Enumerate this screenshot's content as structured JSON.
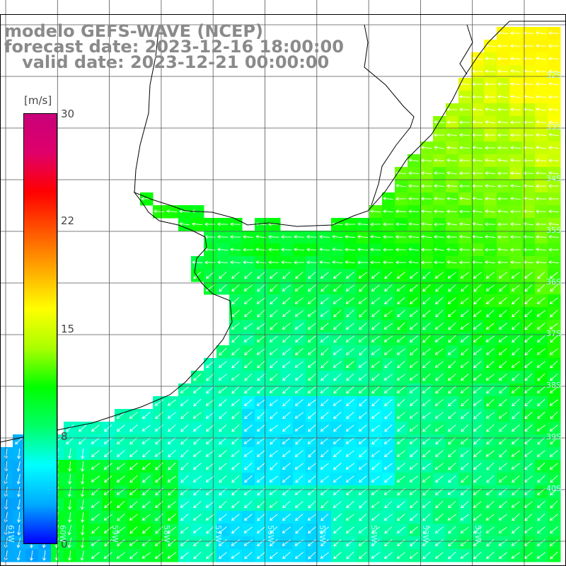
{
  "title": {
    "line1": "modelo GEFS-WAVE (NCEP)",
    "line2": "forecast date: 2023-12-16 18:00:00",
    "line3": "   valid date: 2023-12-21 00:00:00"
  },
  "colorbar": {
    "unit": "[m/s]",
    "ticks": [
      "30",
      "22",
      "15",
      "8",
      "0"
    ],
    "tick_values": [
      30,
      22,
      15,
      8,
      0
    ],
    "colors": [
      "#0000ff",
      "#00aaff",
      "#00ffff",
      "#00ff66",
      "#00ff00",
      "#aaff00",
      "#ffff00",
      "#ffaa00",
      "#ff5500",
      "#ff0000",
      "#e0006a",
      "#c8007a"
    ]
  },
  "grid": {
    "lat_labels": [
      "32S",
      "33S",
      "34S",
      "35S",
      "36S",
      "37S",
      "38S",
      "39S",
      "40S"
    ],
    "lon_labels": [
      "61W",
      "60W",
      "59W",
      "58W",
      "57W",
      "56W",
      "55W",
      "54W",
      "53W",
      "52W"
    ]
  },
  "map": {
    "land_color": "#ffffff",
    "coast_color": "#000000",
    "grid_color": "#555555",
    "arrow_color": "#ffffff"
  }
}
